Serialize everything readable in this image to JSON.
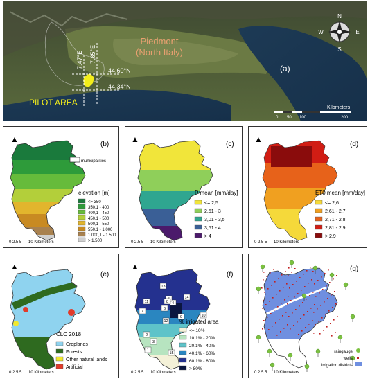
{
  "panel_a": {
    "letter": "(a)",
    "region": "Piedmont",
    "region_sub": "(North Italy)",
    "pilot": "PILOT AREA",
    "lon1": "7.47°E",
    "lon2": "7.85°E",
    "lat1": "44.60°N",
    "lat2": "44.34°N",
    "compass": {
      "n": "N",
      "s": "S",
      "e": "E",
      "w": "W"
    },
    "scale_unit": "Kilometers",
    "scale_ticks": [
      "0",
      "50",
      "100",
      "200"
    ]
  },
  "panel_b": {
    "letter": "(b)",
    "legend_title": "elevation [m]",
    "municipalities": "municipalities",
    "legend": [
      {
        "label": "<= 350",
        "color": "#1a7a3c"
      },
      {
        "label": "350,1 - 400",
        "color": "#2e9b3a"
      },
      {
        "label": "400,1 - 450",
        "color": "#66bb3b"
      },
      {
        "label": "450,1 - 500",
        "color": "#b3cf3a"
      },
      {
        "label": "500,1 - 550",
        "color": "#e2b52d"
      },
      {
        "label": "550,1 - 1.000",
        "color": "#c88a22"
      },
      {
        "label": "1.000,1 - 1.500",
        "color": "#a8814f"
      },
      {
        "label": "> 1.500",
        "color": "#cfcfcf"
      }
    ],
    "scale": "0 2.5 5",
    "scale_unit": "10 Kilometers"
  },
  "panel_c": {
    "letter": "(c)",
    "legend_title": "P mean [mm/day]",
    "legend": [
      {
        "label": "<= 2,5",
        "color": "#f1e53a"
      },
      {
        "label": "2,51 - 3",
        "color": "#8fcf5a"
      },
      {
        "label": "3,01 - 3,5",
        "color": "#2fa690"
      },
      {
        "label": "3,51 - 4",
        "color": "#3a5f96"
      },
      {
        "label": "> 4",
        "color": "#4b1a6b"
      }
    ],
    "scale": "0 2.5 5",
    "scale_unit": "10 Kilometers"
  },
  "panel_d": {
    "letter": "(d)",
    "legend_title": "ET0 mean [mm/day]",
    "legend": [
      {
        "label": "<= 2,6",
        "color": "#f5d93a"
      },
      {
        "label": "2,61 - 2,7",
        "color": "#f0a020"
      },
      {
        "label": "2,71 - 2,8",
        "color": "#e7621a"
      },
      {
        "label": "2,81 - 2,9",
        "color": "#d11d14"
      },
      {
        "label": "> 2.9",
        "color": "#8a0c0c"
      }
    ],
    "scale": "0 2.5 5",
    "scale_unit": "10 Kilometers"
  },
  "panel_e": {
    "letter": "(e)",
    "legend_title": "CLC 2018",
    "legend": [
      {
        "label": "Croplands",
        "color": "#8fd3ef"
      },
      {
        "label": "Forests",
        "color": "#2e6a1f"
      },
      {
        "label": "Other natural lands",
        "color": "#f1e82e"
      },
      {
        "label": "Artificial",
        "color": "#e23a2a"
      }
    ],
    "scale": "0 2.5 5",
    "scale_unit": "10 Kilometers"
  },
  "panel_f": {
    "letter": "(f)",
    "legend_title": "% irrigated area",
    "legend": [
      {
        "label": "<= 10%",
        "color": "#f4f1d8"
      },
      {
        "label": "10.1% - 20%",
        "color": "#b7e4c0"
      },
      {
        "label": "20.1% - 40%",
        "color": "#5ec3c9"
      },
      {
        "label": "40.1% - 60%",
        "color": "#2a86c0"
      },
      {
        "label": "60.1% - 80%",
        "color": "#24318f"
      },
      {
        "label": "> 80%",
        "color": "#0b1640"
      }
    ],
    "district_numbers": [
      "1",
      "2",
      "3",
      "4",
      "5",
      "6",
      "7",
      "8",
      "9",
      "10",
      "11",
      "12",
      "13",
      "14",
      "15"
    ],
    "scale": "0 2.5 5",
    "scale_unit": "10 Kilometers"
  },
  "panel_g": {
    "letter": "(g)",
    "legend": [
      {
        "label": "raingauge",
        "color": "#7cc240"
      },
      {
        "label": "wells",
        "color": "#c02020"
      },
      {
        "label": "irrigation districts",
        "color": "#6f8fe0"
      }
    ],
    "scale": "0 2.5 5",
    "scale_unit": "10 Kilometers"
  }
}
